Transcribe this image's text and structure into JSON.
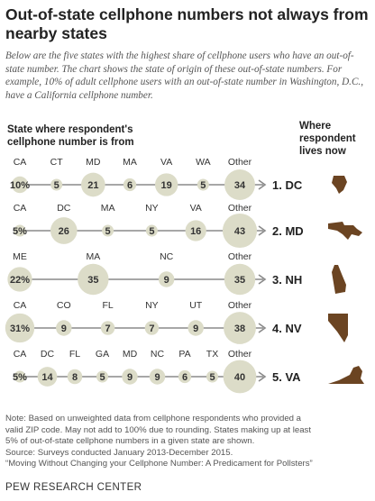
{
  "title": "Out-of-state cellphone numbers not always from nearby states",
  "subtitle": "Below are the five states with the highest share of cellphone users who have an out-of-state number. The chart shows the state of origin of these out-of-state numbers. For example, 10% of adult cellphone users with an out-of-state number in Washington, D.C., have a California cellphone number.",
  "chart_data": {
    "type": "bubble",
    "left_header": "State where respondent's cellphone number is from",
    "right_header": "Where respondent lives now",
    "rows": [
      {
        "rank_label": "1. DC",
        "points": [
          {
            "label": "CA",
            "value": 10,
            "display": "10%"
          },
          {
            "label": "CT",
            "value": 5,
            "display": "5"
          },
          {
            "label": "MD",
            "value": 21,
            "display": "21"
          },
          {
            "label": "MA",
            "value": 6,
            "display": "6"
          },
          {
            "label": "VA",
            "value": 19,
            "display": "19"
          },
          {
            "label": "WA",
            "value": 5,
            "display": "5"
          },
          {
            "label": "Other",
            "value": 34,
            "display": "34"
          }
        ]
      },
      {
        "rank_label": "2. MD",
        "points": [
          {
            "label": "CA",
            "value": 5,
            "display": "5%"
          },
          {
            "label": "DC",
            "value": 26,
            "display": "26"
          },
          {
            "label": "MA",
            "value": 5,
            "display": "5"
          },
          {
            "label": "NY",
            "value": 5,
            "display": "5"
          },
          {
            "label": "VA",
            "value": 16,
            "display": "16"
          },
          {
            "label": "Other",
            "value": 43,
            "display": "43"
          }
        ]
      },
      {
        "rank_label": "3. NH",
        "points": [
          {
            "label": "ME",
            "value": 22,
            "display": "22%"
          },
          {
            "label": "MA",
            "value": 35,
            "display": "35"
          },
          {
            "label": "NC",
            "value": 9,
            "display": "9"
          },
          {
            "label": "Other",
            "value": 35,
            "display": "35"
          }
        ]
      },
      {
        "rank_label": "4. NV",
        "points": [
          {
            "label": "CA",
            "value": 31,
            "display": "31%"
          },
          {
            "label": "CO",
            "value": 9,
            "display": "9"
          },
          {
            "label": "FL",
            "value": 7,
            "display": "7"
          },
          {
            "label": "NY",
            "value": 7,
            "display": "7"
          },
          {
            "label": "UT",
            "value": 9,
            "display": "9"
          },
          {
            "label": "Other",
            "value": 38,
            "display": "38"
          }
        ]
      },
      {
        "rank_label": "5. VA",
        "points": [
          {
            "label": "CA",
            "value": 5,
            "display": "5%"
          },
          {
            "label": "DC",
            "value": 14,
            "display": "14"
          },
          {
            "label": "FL",
            "value": 8,
            "display": "8"
          },
          {
            "label": "GA",
            "value": 5,
            "display": "5"
          },
          {
            "label": "MD",
            "value": 9,
            "display": "9"
          },
          {
            "label": "NC",
            "value": 9,
            "display": "9"
          },
          {
            "label": "PA",
            "value": 6,
            "display": "6"
          },
          {
            "label": "TX",
            "value": 5,
            "display": "5"
          },
          {
            "label": "Other",
            "value": 40,
            "display": "40"
          }
        ]
      }
    ]
  },
  "colors": {
    "bubble": "#dcdcc8",
    "line": "#8a8a8a",
    "state_shape": "#6b4422",
    "label": "#333333"
  },
  "footer": {
    "note_lines": [
      "Note: Based on unweighted data from cellphone respondents who provided a",
      "valid ZIP code. May not add to 100% due to rounding. States making up at least",
      "5% of out-of-state cellphone numbers in a given state are shown.",
      "Source: Surveys conducted January 2013-December 2015.",
      "“Moving Without Changing your Cellphone Number: A Predicament for Pollsters”"
    ],
    "brand": "PEW RESEARCH CENTER"
  }
}
